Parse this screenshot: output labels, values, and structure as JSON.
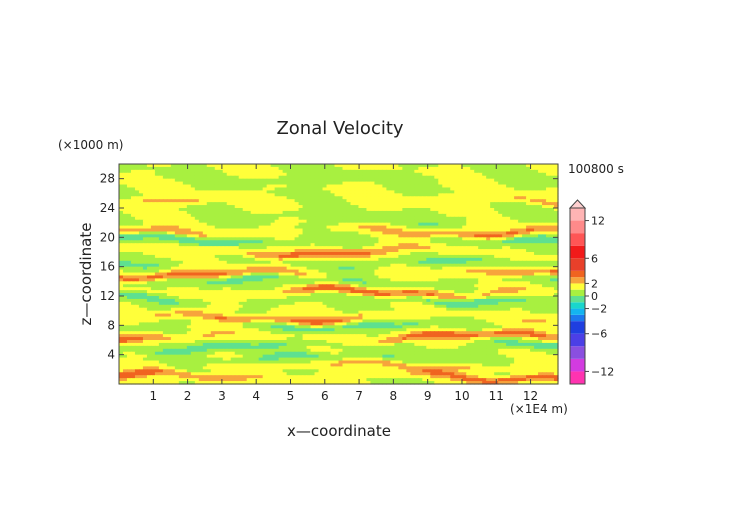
{
  "chart_data": {
    "type": "heatmap",
    "title": "Zonal Velocity",
    "xlabel": "x—coordinate",
    "ylabel": "z—coordinate",
    "x_unit_label": "(×1E4 m)",
    "y_unit_label": "(×1000 m)",
    "time_label": "100800 s",
    "xlim": [
      0,
      12.8
    ],
    "ylim": [
      0,
      30
    ],
    "x_ticks": [
      1,
      2,
      3,
      4,
      5,
      6,
      7,
      8,
      9,
      10,
      11,
      12
    ],
    "y_ticks": [
      4,
      8,
      12,
      16,
      20,
      24,
      28
    ],
    "colorbar": {
      "tick_values": [
        12,
        6,
        2,
        0,
        -2,
        -6,
        -12
      ],
      "range": [
        -14,
        14
      ],
      "levels": [
        {
          "from": -14,
          "to": -12,
          "color": "#ff33b0"
        },
        {
          "from": -12,
          "to": -10,
          "color": "#d23be0"
        },
        {
          "from": -10,
          "to": -8,
          "color": "#8a4fe0"
        },
        {
          "from": -8,
          "to": -6,
          "color": "#4b3fe6"
        },
        {
          "from": -6,
          "to": -4,
          "color": "#1f3fe0"
        },
        {
          "from": -4,
          "to": -3,
          "color": "#1c79ee"
        },
        {
          "from": -3,
          "to": -2,
          "color": "#14b4f0"
        },
        {
          "from": -2,
          "to": -1,
          "color": "#19d6cc"
        },
        {
          "from": -1,
          "to": 0,
          "color": "#5ee090"
        },
        {
          "from": 0,
          "to": 1,
          "color": "#a8f040"
        },
        {
          "from": 1,
          "to": 2,
          "color": "#ffff3a"
        },
        {
          "from": 2,
          "to": 3,
          "color": "#f7a43c"
        },
        {
          "from": 3,
          "to": 4,
          "color": "#f06420"
        },
        {
          "from": 4,
          "to": 6,
          "color": "#e8402a"
        },
        {
          "from": 6,
          "to": 8,
          "color": "#f21a1a"
        },
        {
          "from": 8,
          "to": 10,
          "color": "#ff5555"
        },
        {
          "from": 10,
          "to": 12,
          "color": "#ff8a8a"
        },
        {
          "from": 12,
          "to": 14,
          "color": "#ffb4b4"
        }
      ],
      "overflow_arrow_color": "#ffd0d0"
    },
    "bands": [
      {
        "z": 1,
        "amp": 2.5
      },
      {
        "z": 2.5,
        "amp": 1.5
      },
      {
        "z": 3.5,
        "amp": -1.2
      },
      {
        "z": 5,
        "amp": -1.6
      },
      {
        "z": 6.5,
        "amp": 2.6
      },
      {
        "z": 8,
        "amp": -1.4
      },
      {
        "z": 9,
        "amp": 2.4
      },
      {
        "z": 11.5,
        "amp": -1.6
      },
      {
        "z": 12.5,
        "amp": 2.6
      },
      {
        "z": 14,
        "amp": -1.5
      },
      {
        "z": 15,
        "amp": 2.5
      },
      {
        "z": 16.5,
        "amp": -1.2
      },
      {
        "z": 18,
        "amp": 2.3
      },
      {
        "z": 19.7,
        "amp": -1.8
      },
      {
        "z": 20.8,
        "amp": 2.3
      },
      {
        "z": 22.5,
        "amp": -0.8
      },
      {
        "z": 25,
        "amp": 1.2
      },
      {
        "z": 28,
        "amp": -0.6
      }
    ]
  }
}
